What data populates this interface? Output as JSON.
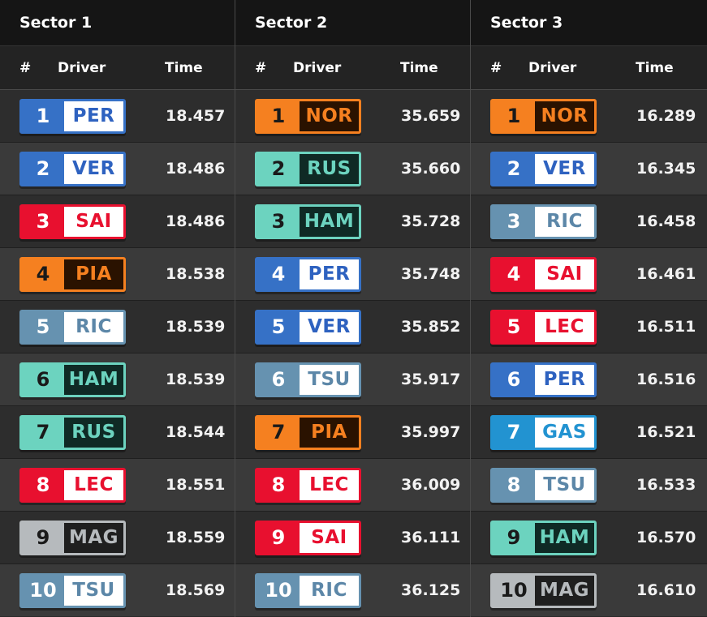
{
  "header": {
    "num_label": "#",
    "driver_label": "Driver",
    "time_label": "Time"
  },
  "teams": {
    "red_bull": {
      "primary": "#3671c6",
      "panel_bg": "#ffffff",
      "text": "#2e62c0",
      "pos_text": "#ffffff"
    },
    "ferrari": {
      "primary": "#e8102f",
      "panel_bg": "#ffffff",
      "text": "#e8102f",
      "pos_text": "#ffffff"
    },
    "mclaren": {
      "primary": "#f58020",
      "panel_bg": "#2a1200",
      "text": "#f58020",
      "pos_text": "#1a1a1a"
    },
    "rb": {
      "primary": "#6692b0",
      "panel_bg": "#ffffff",
      "text": "#5c87a8",
      "pos_text": "#ffffff"
    },
    "mercedes": {
      "primary": "#6cd3bf",
      "panel_bg": "#0f2a25",
      "text": "#6cd3bf",
      "pos_text": "#1a1a1a"
    },
    "haas": {
      "primary": "#b6babd",
      "panel_bg": "#1f1f1f",
      "text": "#b6babd",
      "pos_text": "#1a1a1a"
    },
    "alpine": {
      "primary": "#2293d1",
      "panel_bg": "#ffffff",
      "text": "#2293d1",
      "pos_text": "#ffffff"
    }
  },
  "sectors": [
    {
      "title": "Sector 1",
      "rows": [
        {
          "pos": "1",
          "code": "PER",
          "team": "red_bull",
          "time": "18.457"
        },
        {
          "pos": "2",
          "code": "VER",
          "team": "red_bull",
          "time": "18.486"
        },
        {
          "pos": "3",
          "code": "SAI",
          "team": "ferrari",
          "time": "18.486"
        },
        {
          "pos": "4",
          "code": "PIA",
          "team": "mclaren",
          "time": "18.538"
        },
        {
          "pos": "5",
          "code": "RIC",
          "team": "rb",
          "time": "18.539"
        },
        {
          "pos": "6",
          "code": "HAM",
          "team": "mercedes",
          "time": "18.539"
        },
        {
          "pos": "7",
          "code": "RUS",
          "team": "mercedes",
          "time": "18.544"
        },
        {
          "pos": "8",
          "code": "LEC",
          "team": "ferrari",
          "time": "18.551"
        },
        {
          "pos": "9",
          "code": "MAG",
          "team": "haas",
          "time": "18.559"
        },
        {
          "pos": "10",
          "code": "TSU",
          "team": "rb",
          "time": "18.569"
        }
      ]
    },
    {
      "title": "Sector 2",
      "rows": [
        {
          "pos": "1",
          "code": "NOR",
          "team": "mclaren",
          "time": "35.659"
        },
        {
          "pos": "2",
          "code": "RUS",
          "team": "mercedes",
          "time": "35.660"
        },
        {
          "pos": "3",
          "code": "HAM",
          "team": "mercedes",
          "time": "35.728"
        },
        {
          "pos": "4",
          "code": "PER",
          "team": "red_bull",
          "time": "35.748"
        },
        {
          "pos": "5",
          "code": "VER",
          "team": "red_bull",
          "time": "35.852"
        },
        {
          "pos": "6",
          "code": "TSU",
          "team": "rb",
          "time": "35.917"
        },
        {
          "pos": "7",
          "code": "PIA",
          "team": "mclaren",
          "time": "35.997"
        },
        {
          "pos": "8",
          "code": "LEC",
          "team": "ferrari",
          "time": "36.009"
        },
        {
          "pos": "9",
          "code": "SAI",
          "team": "ferrari",
          "time": "36.111"
        },
        {
          "pos": "10",
          "code": "RIC",
          "team": "rb",
          "time": "36.125"
        }
      ]
    },
    {
      "title": "Sector 3",
      "rows": [
        {
          "pos": "1",
          "code": "NOR",
          "team": "mclaren",
          "time": "16.289"
        },
        {
          "pos": "2",
          "code": "VER",
          "team": "red_bull",
          "time": "16.345"
        },
        {
          "pos": "3",
          "code": "RIC",
          "team": "rb",
          "time": "16.458"
        },
        {
          "pos": "4",
          "code": "SAI",
          "team": "ferrari",
          "time": "16.461"
        },
        {
          "pos": "5",
          "code": "LEC",
          "team": "ferrari",
          "time": "16.511"
        },
        {
          "pos": "6",
          "code": "PER",
          "team": "red_bull",
          "time": "16.516"
        },
        {
          "pos": "7",
          "code": "GAS",
          "team": "alpine",
          "time": "16.521"
        },
        {
          "pos": "8",
          "code": "TSU",
          "team": "rb",
          "time": "16.533"
        },
        {
          "pos": "9",
          "code": "HAM",
          "team": "mercedes",
          "time": "16.570"
        },
        {
          "pos": "10",
          "code": "MAG",
          "team": "haas",
          "time": "16.610"
        }
      ]
    }
  ]
}
